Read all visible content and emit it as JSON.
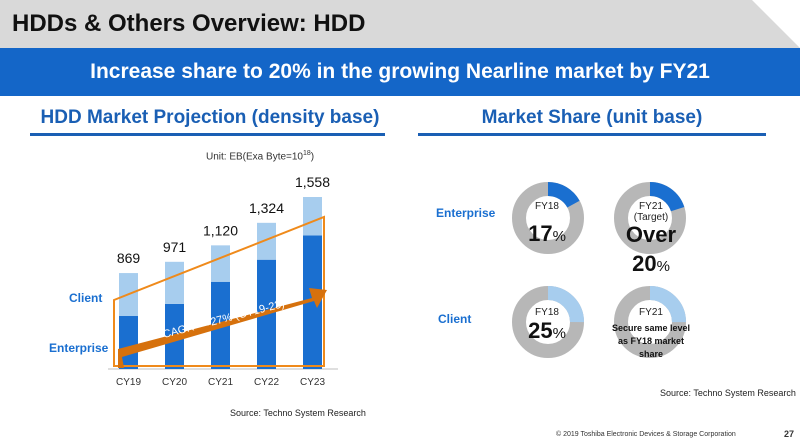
{
  "header": {
    "title": "HDDs & Others Overview: HDD"
  },
  "banner": {
    "text": "Increase share to 20% in the growing Nearline market by FY21"
  },
  "left": {
    "heading": "HDD Market Projection (density base)",
    "unit_prefix": "Unit: EB(Exa Byte=10",
    "unit_exp": "18",
    "unit_suffix": ")",
    "client_label": "Client",
    "enterprise_label": "Enterprise",
    "cagr": "CAGR　+27% (CY19-23)",
    "source": "Source: Techno System Research"
  },
  "chart_data": {
    "type": "bar",
    "categories": [
      "CY19",
      "CY20",
      "CY21",
      "CY22",
      "CY23"
    ],
    "totals": [
      869,
      971,
      1120,
      1324,
      1558
    ],
    "total_labels": [
      "869",
      "971",
      "1,120",
      "1,324",
      "1,558"
    ],
    "series": [
      {
        "name": "Enterprise",
        "values": [
          480,
          590,
          790,
          990,
          1210
        ]
      },
      {
        "name": "Client",
        "values": [
          389,
          381,
          330,
          334,
          348
        ]
      }
    ],
    "colors": {
      "Enterprise": "#1a6fd0",
      "Client": "#a7cdee"
    },
    "ylim": [
      0,
      1650
    ]
  },
  "right": {
    "heading": "Market Share (unit base)",
    "enterprise_label": "Enterprise",
    "client_label": "Client",
    "source": "Source: Techno System Research",
    "donuts": [
      {
        "label": "FY18",
        "sub": "",
        "value": "17",
        "unit": "%",
        "share": 0.17,
        "color": "#1a6fd0"
      },
      {
        "label": "FY21",
        "sub": "(Target)",
        "value": "Over",
        "value2": "20",
        "unit": "%",
        "share": 0.2,
        "color": "#1a6fd0"
      },
      {
        "label": "FY18",
        "sub": "",
        "value": "25",
        "unit": "%",
        "share": 0.25,
        "color": "#a7cdee"
      },
      {
        "label": "FY21",
        "text": "Secure same level as FY18 market share",
        "share": 0.25,
        "color": "#a7cdee"
      }
    ]
  },
  "footer": {
    "copyright": "© 2019 Toshiba Electronic Devices & Storage Corporation",
    "page": "27"
  }
}
